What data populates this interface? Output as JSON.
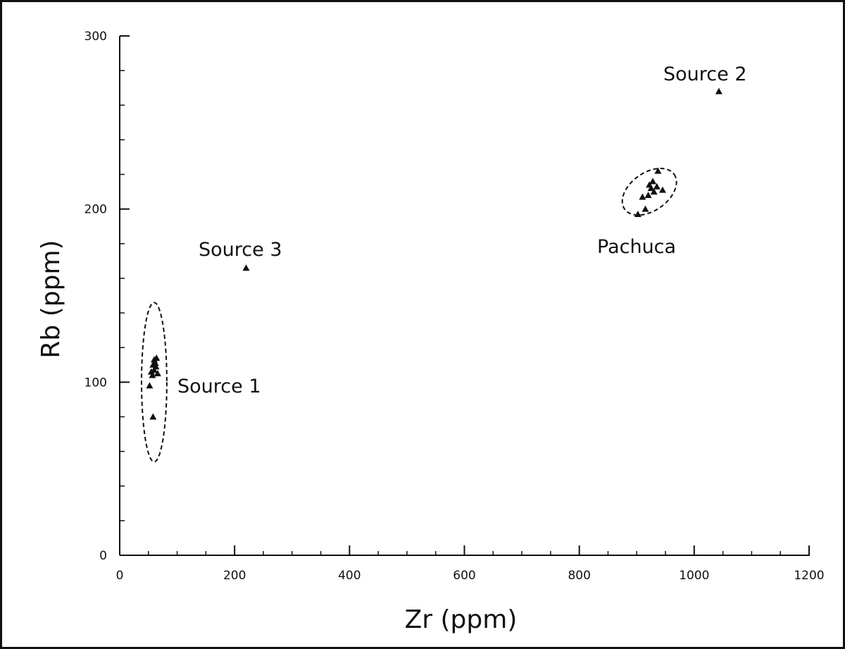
{
  "chart_data": {
    "type": "scatter",
    "xlabel": "Zr (ppm)",
    "ylabel": "Rb (ppm)",
    "xlim": [
      0,
      1200
    ],
    "ylim": [
      0,
      300
    ],
    "x_ticks": [
      0,
      200,
      400,
      600,
      800,
      1000,
      1200
    ],
    "y_ticks": [
      0,
      100,
      200,
      300
    ],
    "x_minor_step": 50,
    "y_minor_step": 20,
    "grid": false,
    "marker": "triangle",
    "series": [
      {
        "points": [
          [
            58,
            80
          ],
          [
            52,
            98
          ],
          [
            57,
            104
          ],
          [
            60,
            107
          ],
          [
            63,
            109
          ],
          [
            58,
            110
          ],
          [
            62,
            111
          ],
          [
            60,
            113
          ],
          [
            64,
            114
          ],
          [
            66,
            105
          ],
          [
            55,
            106
          ],
          [
            220,
            166
          ],
          [
            1043,
            268
          ],
          [
            902,
            197
          ],
          [
            915,
            200
          ],
          [
            910,
            207
          ],
          [
            920,
            208
          ],
          [
            930,
            210
          ],
          [
            925,
            212
          ],
          [
            935,
            213
          ],
          [
            945,
            211
          ],
          [
            928,
            216
          ],
          [
            937,
            222
          ],
          [
            922,
            214
          ]
        ]
      }
    ],
    "groups": [
      {
        "label": "Source 1",
        "center": [
          60,
          100
        ],
        "radii": [
          22,
          23
        ],
        "dashed": true
      },
      {
        "label": "Source 2",
        "point": [
          1043,
          268
        ]
      },
      {
        "label": "Source 3",
        "point": [
          220,
          166
        ]
      },
      {
        "label": "Pachuca",
        "center": [
          922,
          210
        ],
        "radii": [
          47,
          18
        ],
        "rotation": -35,
        "dashed": true
      }
    ],
    "annotations": [
      {
        "text": "Source 1"
      },
      {
        "text": "Source 2"
      },
      {
        "text": "Source 3"
      },
      {
        "text": "Pachuca"
      }
    ]
  }
}
